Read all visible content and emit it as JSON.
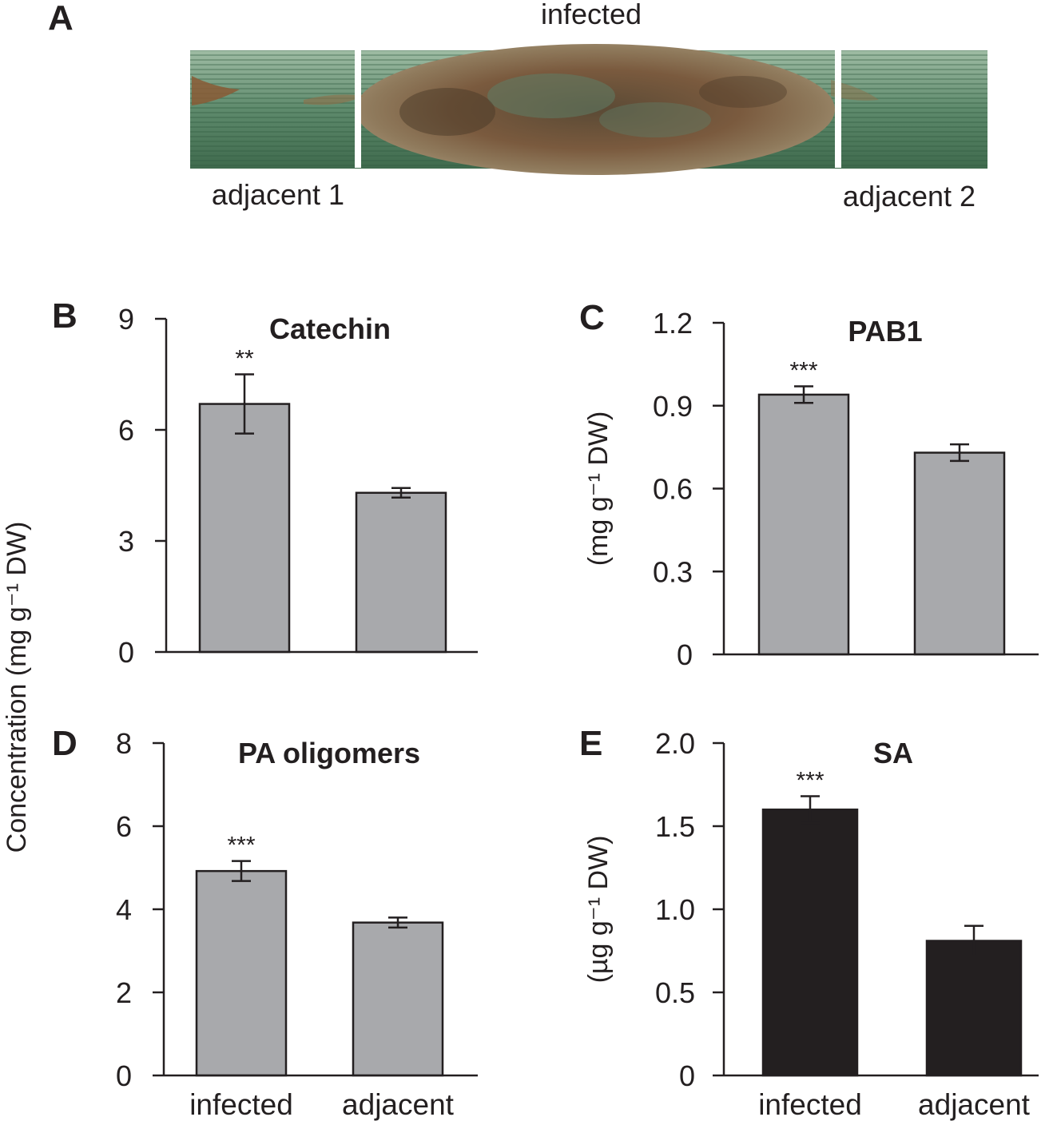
{
  "photo": {
    "panel_label": "A",
    "label_top": "infected",
    "label_left": "adjacent 1",
    "label_right": "adjacent 2"
  },
  "shared_ylabel": "Concentration (mg g⁻¹ DW)",
  "colors": {
    "gray_bar": "#a8a9ac",
    "black_bar": "#231f20",
    "axis": "#231f20",
    "leaf_green": "#5e8a6c",
    "lesion_brown": "#7a5a3e"
  },
  "chart_data": [
    {
      "panel": "B",
      "type": "bar",
      "title": "Catechin",
      "ylabel": "",
      "categories": [
        "infected",
        "adjacent"
      ],
      "values": [
        6.7,
        4.3
      ],
      "errors": [
        0.8,
        0.13
      ],
      "significance": [
        "**",
        ""
      ],
      "ylim": [
        0,
        9
      ],
      "yticks": [
        "0",
        "3",
        "6",
        "9"
      ],
      "bar_color": "#a8a9ac",
      "show_xticklabels": false
    },
    {
      "panel": "C",
      "type": "bar",
      "title": "PAB1",
      "ylabel": "(mg g⁻¹ DW)",
      "categories": [
        "infected",
        "adjacent"
      ],
      "values": [
        0.94,
        0.73
      ],
      "errors": [
        0.03,
        0.03
      ],
      "significance": [
        "***",
        ""
      ],
      "ylim": [
        0,
        1.2
      ],
      "yticks": [
        "0",
        "0.3",
        "0.6",
        "0.9",
        "1.2"
      ],
      "bar_color": "#a8a9ac",
      "show_xticklabels": false
    },
    {
      "panel": "D",
      "type": "bar",
      "title": "PA oligomers",
      "ylabel": "",
      "categories": [
        "infected",
        "adjacent"
      ],
      "values": [
        4.92,
        3.68
      ],
      "errors": [
        0.24,
        0.12
      ],
      "significance": [
        "***",
        ""
      ],
      "ylim": [
        0,
        8
      ],
      "yticks": [
        "0",
        "2",
        "4",
        "6",
        "8"
      ],
      "bar_color": "#a8a9ac",
      "show_xticklabels": true
    },
    {
      "panel": "E",
      "type": "bar",
      "title": "SA",
      "ylabel": "(µg g⁻¹ DW)",
      "categories": [
        "infected",
        "adjacent"
      ],
      "values": [
        1.6,
        0.81
      ],
      "errors": [
        0.08,
        0.09
      ],
      "significance": [
        "***",
        ""
      ],
      "ylim": [
        0,
        2.0
      ],
      "yticks": [
        "0",
        "0.5",
        "1.0",
        "1.5",
        "2.0"
      ],
      "bar_color": "#231f20",
      "show_xticklabels": true
    }
  ]
}
